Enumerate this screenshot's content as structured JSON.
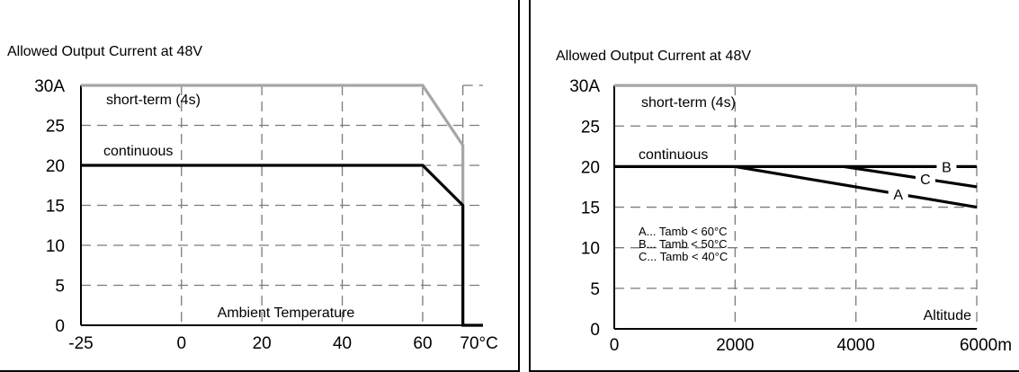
{
  "chart_data": [
    {
      "type": "line",
      "title": "Allowed Output Current at 48V",
      "xlabel": "Ambient Temperature",
      "ylabel": "",
      "x_ticks": [
        -25,
        0,
        20,
        40,
        60,
        70
      ],
      "x_tick_labels": [
        "-25",
        "0",
        "20",
        "40",
        "60",
        "70°C"
      ],
      "y_ticks": [
        0,
        5,
        10,
        15,
        20,
        25,
        30
      ],
      "y_tick_labels": [
        "0",
        "5",
        "10",
        "15",
        "20",
        "25",
        "30A"
      ],
      "xlim": [
        -25,
        75
      ],
      "ylim": [
        0,
        30
      ],
      "grid": true,
      "series": [
        {
          "name": "short-term (4s)",
          "color": "#a6a6a6",
          "x": [
            -25,
            60,
            70,
            70
          ],
          "y": [
            30,
            30,
            22.5,
            0
          ]
        },
        {
          "name": "continuous",
          "color": "#000000",
          "x": [
            -25,
            60,
            70,
            70,
            75
          ],
          "y": [
            20,
            20,
            15,
            0,
            0
          ]
        }
      ]
    },
    {
      "type": "line",
      "title": "Allowed Output Current at 48V",
      "xlabel": "Altitude",
      "ylabel": "",
      "x_ticks": [
        0,
        2000,
        4000,
        6000
      ],
      "x_tick_labels": [
        "0",
        "2000",
        "4000",
        "6000m"
      ],
      "y_ticks": [
        0,
        5,
        10,
        15,
        20,
        25,
        30
      ],
      "y_tick_labels": [
        "0",
        "5",
        "10",
        "15",
        "20",
        "25",
        "30A"
      ],
      "xlim": [
        0,
        6000
      ],
      "ylim": [
        0,
        30
      ],
      "grid": true,
      "legend_text": [
        "A... Tamb < 60°C",
        "B... Tamb < 50°C",
        "C... Tamb < 40°C"
      ],
      "series": [
        {
          "name": "short-term (4s)",
          "color": "#a6a6a6",
          "x": [
            0,
            6000
          ],
          "y": [
            30,
            30
          ]
        },
        {
          "name": "continuous",
          "color": "#000000",
          "x": [
            0,
            2000
          ],
          "y": [
            20,
            20
          ]
        },
        {
          "name": "A",
          "color": "#000000",
          "x": [
            2000,
            6000
          ],
          "y": [
            20,
            15
          ]
        },
        {
          "name": "B",
          "color": "#000000",
          "x": [
            2000,
            6000
          ],
          "y": [
            20,
            20
          ]
        },
        {
          "name": "C",
          "color": "#000000",
          "x": [
            3800,
            6000
          ],
          "y": [
            20,
            17.5
          ]
        }
      ]
    }
  ]
}
